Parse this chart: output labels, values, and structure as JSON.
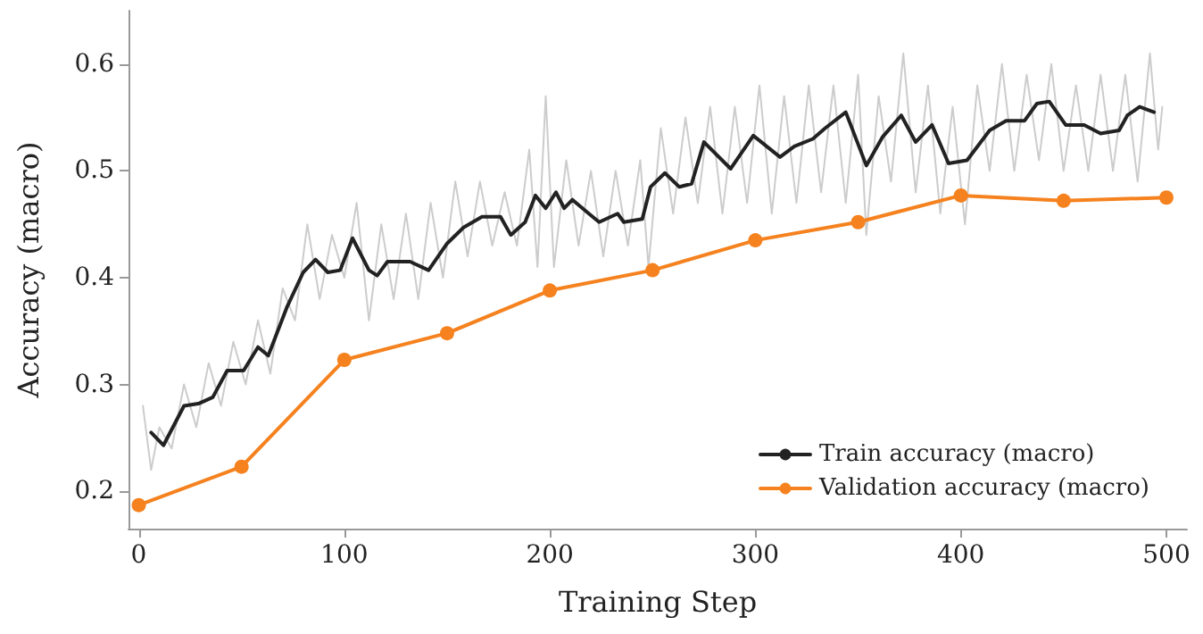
{
  "chart_data": {
    "type": "line",
    "xlabel": "Training Step",
    "ylabel": "Accuracy (macro)",
    "xlim": [
      -5,
      510
    ],
    "xticks": [
      0,
      100,
      200,
      300,
      400,
      500
    ],
    "ylim": [
      0.165,
      0.65
    ],
    "yticks": [
      0.2,
      0.3,
      0.4,
      0.5,
      0.6
    ],
    "grid": false,
    "legend": "bottom right",
    "series": [
      {
        "color": "#cccccc",
        "marker": "none",
        "x": [
          2,
          6,
          10,
          16,
          22,
          28,
          34,
          40,
          46,
          52,
          58,
          64,
          70,
          76,
          82,
          88,
          94,
          100,
          106,
          112,
          118,
          124,
          130,
          136,
          142,
          148,
          154,
          160,
          166,
          172,
          178,
          184,
          190,
          194,
          198,
          202,
          208,
          214,
          220,
          226,
          232,
          238,
          244,
          248,
          254,
          260,
          266,
          272,
          278,
          284,
          290,
          296,
          302,
          308,
          314,
          320,
          326,
          332,
          338,
          344,
          350,
          354,
          360,
          366,
          372,
          378,
          384,
          390,
          396,
          402,
          408,
          414,
          420,
          426,
          432,
          438,
          444,
          450,
          456,
          462,
          468,
          474,
          480,
          486,
          492,
          496,
          498
        ],
        "values": [
          0.28,
          0.22,
          0.26,
          0.24,
          0.3,
          0.26,
          0.32,
          0.28,
          0.34,
          0.3,
          0.36,
          0.31,
          0.39,
          0.36,
          0.45,
          0.38,
          0.44,
          0.4,
          0.47,
          0.36,
          0.45,
          0.38,
          0.46,
          0.38,
          0.47,
          0.4,
          0.49,
          0.42,
          0.49,
          0.43,
          0.48,
          0.43,
          0.52,
          0.41,
          0.57,
          0.41,
          0.51,
          0.43,
          0.5,
          0.42,
          0.5,
          0.43,
          0.51,
          0.41,
          0.54,
          0.46,
          0.55,
          0.47,
          0.56,
          0.46,
          0.56,
          0.47,
          0.58,
          0.46,
          0.57,
          0.47,
          0.58,
          0.48,
          0.58,
          0.47,
          0.59,
          0.44,
          0.57,
          0.49,
          0.61,
          0.48,
          0.58,
          0.46,
          0.56,
          0.45,
          0.58,
          0.5,
          0.6,
          0.5,
          0.59,
          0.51,
          0.6,
          0.5,
          0.58,
          0.5,
          0.59,
          0.5,
          0.59,
          0.49,
          0.61,
          0.52,
          0.56
        ]
      },
      {
        "name": "Train accuracy (macro)",
        "color": "#222222",
        "marker": "none",
        "x": [
          6,
          12,
          22,
          29,
          36,
          43,
          51,
          58,
          63,
          72,
          80,
          86,
          92,
          98,
          104,
          112,
          116,
          121,
          132,
          141,
          150,
          158,
          167,
          176,
          181,
          188,
          193,
          198,
          203,
          207,
          211,
          219,
          224,
          233,
          236,
          245,
          249,
          256,
          263,
          269,
          275,
          288,
          299,
          312,
          319,
          328,
          334,
          344,
          354,
          362,
          371,
          378,
          386,
          394,
          403,
          414,
          422,
          431,
          437,
          443,
          451,
          460,
          468,
          477,
          481,
          487,
          494
        ],
        "values": [
          0.255,
          0.243,
          0.28,
          0.282,
          0.288,
          0.313,
          0.313,
          0.335,
          0.327,
          0.372,
          0.405,
          0.417,
          0.405,
          0.407,
          0.437,
          0.407,
          0.402,
          0.415,
          0.415,
          0.407,
          0.432,
          0.447,
          0.457,
          0.457,
          0.44,
          0.452,
          0.477,
          0.465,
          0.48,
          0.465,
          0.473,
          0.46,
          0.452,
          0.46,
          0.452,
          0.455,
          0.485,
          0.498,
          0.485,
          0.488,
          0.527,
          0.502,
          0.533,
          0.513,
          0.523,
          0.53,
          0.54,
          0.555,
          0.505,
          0.532,
          0.552,
          0.527,
          0.543,
          0.507,
          0.51,
          0.538,
          0.547,
          0.547,
          0.563,
          0.565,
          0.543,
          0.543,
          0.535,
          0.538,
          0.552,
          0.56,
          0.555
        ]
      },
      {
        "name": "Validation accuracy (macro)",
        "color": "#f5821f",
        "marker": "circle",
        "x": [
          0,
          50,
          100,
          150,
          200,
          250,
          300,
          350,
          400,
          450,
          500
        ],
        "values": [
          0.187,
          0.223,
          0.323,
          0.348,
          0.388,
          0.407,
          0.435,
          0.452,
          0.477,
          0.472,
          0.475
        ]
      }
    ]
  }
}
